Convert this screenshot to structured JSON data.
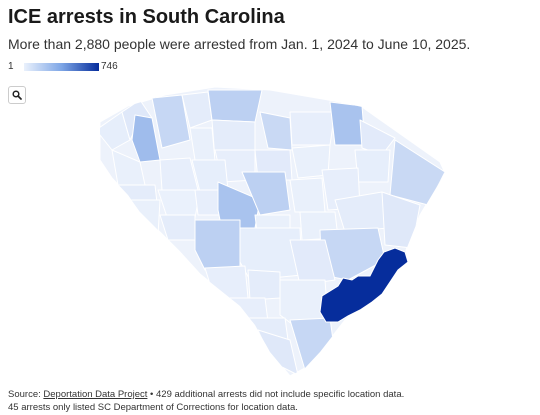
{
  "title": "ICE arrests in South Carolina",
  "subtitle": "More than 2,880 people were arrested from Jan. 1, 2024 to June 10, 2025.",
  "legend": {
    "min_label": "1",
    "max_label": "746",
    "colors": [
      "#eaf1fc",
      "#7ea6e6",
      "#062d9c"
    ]
  },
  "search": {
    "icon": "search-icon"
  },
  "map": {
    "region": "South Carolina",
    "shading": "counties colored by number of ICE arrests",
    "highest_county_color": "#062d9c"
  },
  "footer": {
    "source_prefix": "Source: ",
    "source_link": "Deportation Data Project",
    "line1_rest": " • 429 additional arrests did not include specific location data.",
    "line2": "45 arrests only listed SC Department of Corrections for location data."
  }
}
